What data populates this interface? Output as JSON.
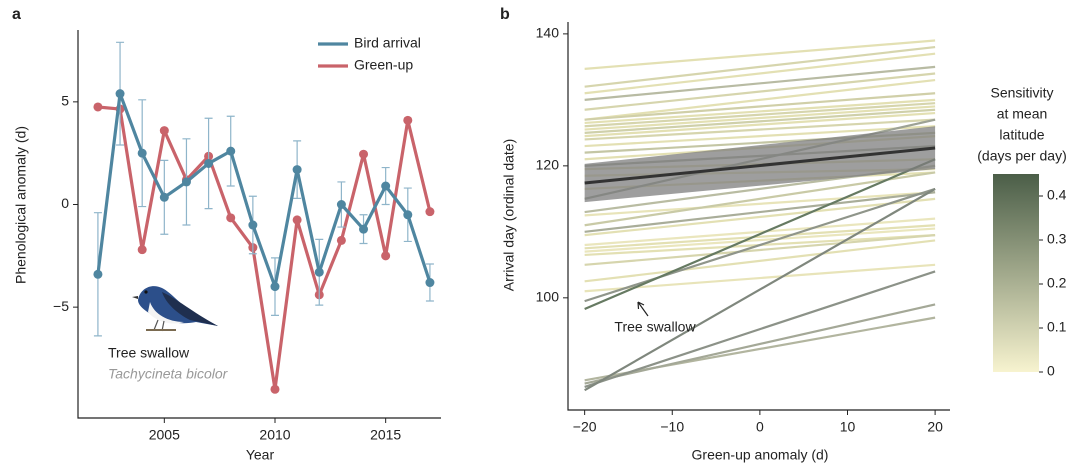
{
  "chart_data": [
    {
      "type": "line",
      "panel_label": "a",
      "x_label": "Year",
      "y_label": "Phenological anomaly (d)",
      "x": [
        2002,
        2003,
        2004,
        2005,
        2006,
        2007,
        2008,
        2009,
        2010,
        2011,
        2012,
        2013,
        2014,
        2015,
        2016,
        2017
      ],
      "series": [
        {
          "name": "Bird arrival",
          "color": "#4f86a0",
          "error_color": "#8fb5ca",
          "values": [
            -3.4,
            5.4,
            2.5,
            0.35,
            1.1,
            2.0,
            2.6,
            -1.0,
            -4.0,
            1.7,
            -3.3,
            0.0,
            -1.2,
            0.9,
            -0.5,
            -3.8
          ],
          "errors": [
            3.0,
            2.5,
            2.6,
            1.8,
            2.1,
            2.2,
            1.7,
            1.4,
            1.4,
            1.4,
            1.6,
            1.1,
            0.7,
            0.9,
            1.3,
            0.9
          ]
        },
        {
          "name": "Green-up",
          "color": "#c9636a",
          "values": [
            4.75,
            4.65,
            -2.2,
            3.6,
            1.2,
            2.35,
            -0.65,
            -2.1,
            -9.0,
            -0.75,
            -4.4,
            -1.75,
            2.45,
            -2.5,
            4.1,
            -0.35
          ]
        }
      ],
      "xlim": [
        2001.1,
        2017.5
      ],
      "ylim": [
        -10.4,
        8.5
      ],
      "xticks": [
        2005,
        2010,
        2015
      ],
      "yticks": [
        {
          "value": -5,
          "label": "−5"
        },
        0,
        5
      ],
      "legend": "upper right",
      "species": "Tree swallow",
      "species_latin": "Tachycineta bicolor"
    },
    {
      "type": "fan",
      "panel_label": "b",
      "x_label": "Green-up anomaly (d)",
      "y_label": "Arrival day (ordinal date)",
      "x": [
        -20,
        20
      ],
      "series": [
        {
          "color": "#e3e0b3",
          "values": [
            134.7,
            139.0
          ]
        },
        {
          "color": "#d6d5ad",
          "values": [
            132,
            138
          ]
        },
        {
          "color": "#e3e0b3",
          "values": [
            131,
            137
          ]
        },
        {
          "color": "#b8bba3",
          "values": [
            130,
            135
          ]
        },
        {
          "color": "#d6d5ad",
          "values": [
            128.5,
            134
          ]
        },
        {
          "color": "#e3e0b3",
          "values": [
            127,
            133
          ]
        },
        {
          "color": "#d0cfa8",
          "values": [
            127,
            131
          ]
        },
        {
          "color": "#e3e0b3",
          "values": [
            126.5,
            130
          ]
        },
        {
          "color": "#d6d5ad",
          "values": [
            126,
            129.5
          ]
        },
        {
          "color": "#e3e0b3",
          "values": [
            125.5,
            129
          ]
        },
        {
          "color": "#cfd0aa",
          "values": [
            125,
            128.5
          ]
        },
        {
          "color": "#e3e0b3",
          "values": [
            124.5,
            128
          ]
        },
        {
          "color": "#d6d5ad",
          "values": [
            124,
            127
          ]
        },
        {
          "color": "#e3e0b3",
          "values": [
            123,
            126
          ]
        },
        {
          "color": "#c4c6a4",
          "values": [
            122,
            125
          ]
        },
        {
          "color": "#e3e0b3",
          "values": [
            121,
            124.5
          ]
        },
        {
          "color": "#a6ab9a",
          "values": [
            120,
            123
          ]
        },
        {
          "color": "#e3e0b3",
          "values": [
            119.5,
            121
          ]
        },
        {
          "color": "#eae6bd",
          "values": [
            118.5,
            119.5
          ]
        },
        {
          "color": "#e3e0b3",
          "values": [
            116.5,
            119
          ]
        },
        {
          "color": "#9da295",
          "values": [
            115,
            127
          ]
        },
        {
          "color": "#b9bca2",
          "values": [
            113,
            120
          ]
        },
        {
          "color": "#e8e4b9",
          "values": [
            112.5,
            116
          ]
        },
        {
          "color": "#c9caa6",
          "values": [
            111,
            119
          ]
        },
        {
          "color": "#a9ad99",
          "values": [
            110,
            116
          ]
        },
        {
          "color": "#e3e0b3",
          "values": [
            109.5,
            115
          ]
        },
        {
          "color": "#eae6bd",
          "values": [
            108,
            112
          ]
        },
        {
          "color": "#e3e0b3",
          "values": [
            107.5,
            111
          ]
        },
        {
          "color": "#eae6bd",
          "values": [
            107,
            110.5
          ]
        },
        {
          "color": "#e3e0b3",
          "values": [
            106.5,
            109.5
          ]
        },
        {
          "color": "#d6d5ad",
          "values": [
            105,
            109.5
          ]
        },
        {
          "color": "#e3e0b3",
          "values": [
            102.5,
            108.7
          ]
        },
        {
          "color": "#e8e4b9",
          "values": [
            101,
            105
          ]
        },
        {
          "color": "#8f958a",
          "values": [
            99.5,
            116.5
          ]
        },
        {
          "color": "#667a62",
          "values": [
            98.3,
            121
          ]
        },
        {
          "color": "#b2b59f",
          "values": [
            87.5,
            97
          ]
        },
        {
          "color": "#a4a897",
          "values": [
            87,
            99
          ]
        },
        {
          "color": "#8c9288",
          "values": [
            86.5,
            104
          ]
        },
        {
          "color": "#7f877d",
          "values": [
            86,
            116.5
          ]
        }
      ],
      "mean": {
        "color": "#333333",
        "values": [
          117.4,
          122.7
        ]
      },
      "band": {
        "color": "#7d7d7d",
        "lower": [
          114.5,
          119.5
        ],
        "upper": [
          120.3,
          126
        ]
      },
      "xlim": [
        -21.9,
        21.7
      ],
      "ylim": [
        83,
        141.8
      ],
      "xticks": [
        {
          "value": -20,
          "label": "−20"
        },
        {
          "value": -10,
          "label": "−10"
        },
        0,
        10,
        20
      ],
      "yticks": [
        100,
        120,
        140
      ],
      "annotation": "Tree swallow",
      "colorbar": {
        "title": [
          "Sensitivity",
          "at mean",
          "latitude",
          "(days per day)"
        ],
        "lim": [
          0,
          0.45
        ],
        "ticks": [
          0,
          0.1,
          0.2,
          0.3,
          0.4
        ],
        "colors": [
          "#f7f3cf",
          "#4b5e48"
        ]
      }
    }
  ]
}
